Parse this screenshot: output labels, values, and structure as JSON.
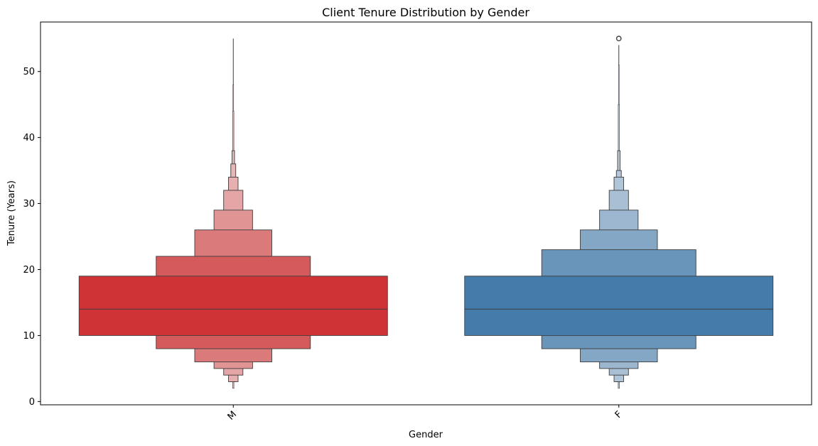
{
  "chart_data": {
    "type": "boxen",
    "title": "Client Tenure Distribution by Gender",
    "xlabel": "Gender",
    "ylabel": "Tenure (Years)",
    "categories": [
      "M",
      "F"
    ],
    "ylim": [
      -0.5,
      57.5
    ],
    "yticks": [
      0,
      10,
      20,
      30,
      40,
      50
    ],
    "x_tick_rotation_deg": -45,
    "grid": false,
    "series": [
      {
        "category": "M",
        "base_color": "#d62728",
        "median": 14,
        "whisker_min": 2,
        "whisker_max": 55,
        "outliers": [],
        "boxes": [
          {
            "low": 10,
            "high": 19,
            "width_frac": 1.0,
            "color": "#cf3336"
          },
          {
            "low": 8,
            "high": 22,
            "width_frac": 0.5,
            "color": "#d55a5c"
          },
          {
            "low": 6,
            "high": 26,
            "width_frac": 0.25,
            "color": "#db7a7b"
          },
          {
            "low": 5,
            "high": 29,
            "width_frac": 0.125,
            "color": "#e09494"
          },
          {
            "low": 4,
            "high": 32,
            "width_frac": 0.0625,
            "color": "#e4a5a6"
          },
          {
            "low": 3,
            "high": 34,
            "width_frac": 0.031,
            "color": "#e6afb0"
          },
          {
            "low": 3,
            "high": 36,
            "width_frac": 0.016,
            "color": "#e8b6b7"
          },
          {
            "low": 3,
            "high": 38,
            "width_frac": 0.008,
            "color": "#e9babb"
          },
          {
            "low": 2,
            "high": 44,
            "width_frac": 0.004,
            "color": "#eabdbe"
          },
          {
            "low": 2,
            "high": 48,
            "width_frac": 0.002,
            "color": "#eabfbf"
          }
        ]
      },
      {
        "category": "F",
        "base_color": "#1f77b4",
        "median": 14,
        "whisker_min": 2,
        "whisker_max": 54,
        "outliers": [
          55,
          55
        ],
        "boxes": [
          {
            "low": 10,
            "high": 19,
            "width_frac": 1.0,
            "color": "#437bab"
          },
          {
            "low": 8,
            "high": 23,
            "width_frac": 0.5,
            "color": "#6895b9"
          },
          {
            "low": 6,
            "high": 26,
            "width_frac": 0.25,
            "color": "#84a7c5"
          },
          {
            "low": 5,
            "high": 29,
            "width_frac": 0.125,
            "color": "#9bb6ce"
          },
          {
            "low": 4,
            "high": 32,
            "width_frac": 0.0625,
            "color": "#a9c0d4"
          },
          {
            "low": 3,
            "high": 34,
            "width_frac": 0.031,
            "color": "#b0c5d8"
          },
          {
            "low": 3,
            "high": 35,
            "width_frac": 0.016,
            "color": "#b5c9da"
          },
          {
            "low": 3,
            "high": 38,
            "width_frac": 0.008,
            "color": "#b8cbdc"
          },
          {
            "low": 2,
            "high": 45,
            "width_frac": 0.004,
            "color": "#baccdd"
          },
          {
            "low": 2,
            "high": 51,
            "width_frac": 0.002,
            "color": "#bbcdde"
          }
        ]
      }
    ]
  }
}
